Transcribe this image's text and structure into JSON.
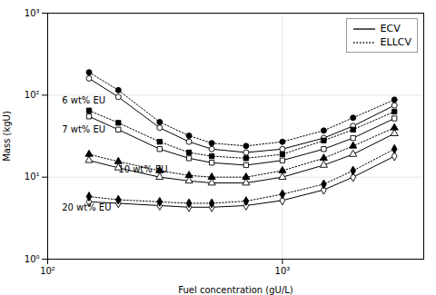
{
  "chart_data": {
    "type": "line",
    "title": "",
    "xlabel": "Fuel concentration (gU/L)",
    "ylabel": "Mass (kgU)",
    "log": true,
    "grid": true,
    "legend": "upper right",
    "xlim": [
      100,
      4000
    ],
    "ylim": [
      1.0,
      1000
    ],
    "xticks": [
      {
        "value": 100,
        "label": "10²"
      },
      {
        "value": 1000,
        "label": "10³"
      }
    ],
    "yticks": [
      {
        "value": 1,
        "label": "10⁰"
      },
      {
        "value": 10,
        "label": "10¹"
      },
      {
        "value": 100,
        "label": "10²"
      },
      {
        "value": 1000,
        "label": "10³"
      }
    ],
    "x": [
      150,
      200,
      300,
      400,
      500,
      700,
      1000,
      1500,
      2000,
      3000
    ],
    "series": [
      {
        "name": "ECV",
        "color": "#000000",
        "line_style": "solid",
        "marker": "circle-open",
        "values": [
          160,
          95,
          40,
          27,
          22,
          20,
          22,
          30,
          42,
          75
        ]
      },
      {
        "name": "ELLCV",
        "color": "#000000",
        "line_style": "dotted",
        "marker": "circle",
        "values": [
          190,
          115,
          47,
          32,
          26,
          24,
          27,
          37,
          53,
          88
        ]
      },
      {
        "name": "ECV",
        "color": "#000000",
        "line_style": "solid",
        "marker": "square-open",
        "values": [
          55,
          38,
          22,
          17,
          15,
          14,
          16,
          22,
          30,
          52
        ]
      },
      {
        "name": "ELLCV",
        "color": "#000000",
        "line_style": "dotted",
        "marker": "square",
        "values": [
          65,
          46,
          27,
          20,
          18,
          17,
          19,
          28,
          38,
          63
        ]
      },
      {
        "name": "ECV",
        "color": "#000000",
        "line_style": "solid",
        "marker": "triangle-open",
        "values": [
          16,
          13,
          10,
          9,
          8.5,
          8.5,
          10,
          14,
          19,
          34
        ]
      },
      {
        "name": "ELLCV",
        "color": "#000000",
        "line_style": "dotted",
        "marker": "triangle",
        "values": [
          19,
          15.5,
          12,
          10.5,
          10,
          10,
          12,
          17,
          24,
          40
        ]
      },
      {
        "name": "ECV",
        "color": "#000000",
        "line_style": "solid",
        "marker": "diamond-open",
        "values": [
          5.0,
          4.8,
          4.5,
          4.3,
          4.3,
          4.5,
          5.2,
          7.0,
          10,
          18
        ]
      },
      {
        "name": "ELLCV",
        "color": "#000000",
        "line_style": "dotted",
        "marker": "diamond",
        "values": [
          5.8,
          5.3,
          5.0,
          4.8,
          4.8,
          5.1,
          6.2,
          8.2,
          12,
          22
        ]
      }
    ],
    "annotations": [
      {
        "text": "6 wt% EU",
        "x": 115,
        "y": 85
      },
      {
        "text": "7 wt% EU",
        "x": 115,
        "y": 38
      },
      {
        "text": "10 wt% EU",
        "x": 200,
        "y": 12.5
      },
      {
        "text": "20 wt% EU",
        "x": 115,
        "y": 4.2
      }
    ]
  }
}
